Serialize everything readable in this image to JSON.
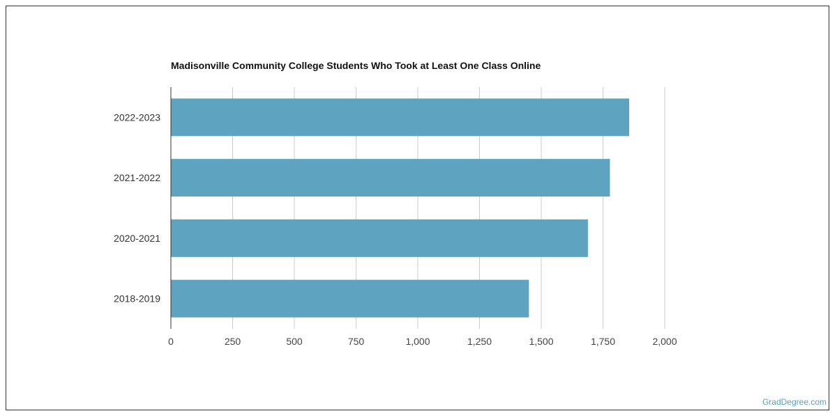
{
  "chart_data": {
    "type": "bar",
    "orientation": "horizontal",
    "title": "Madisonville Community College Students Who Took at Least One Class Online",
    "categories": [
      "2022-2023",
      "2021-2022",
      "2020-2021",
      "2018-2019"
    ],
    "values": [
      1856,
      1778,
      1689,
      1450
    ],
    "xlim": [
      0,
      2000
    ],
    "xticks": [
      0,
      250,
      500,
      750,
      1000,
      1250,
      1500,
      1750,
      2000
    ],
    "xtick_labels": [
      "0",
      "250",
      "500",
      "750",
      "1,000",
      "1,250",
      "1,500",
      "1,750",
      "2,000"
    ],
    "xlabel": "",
    "ylabel": "",
    "grid": true,
    "bar_color": "#5ea3c0"
  },
  "credit": "GradDegree.com"
}
